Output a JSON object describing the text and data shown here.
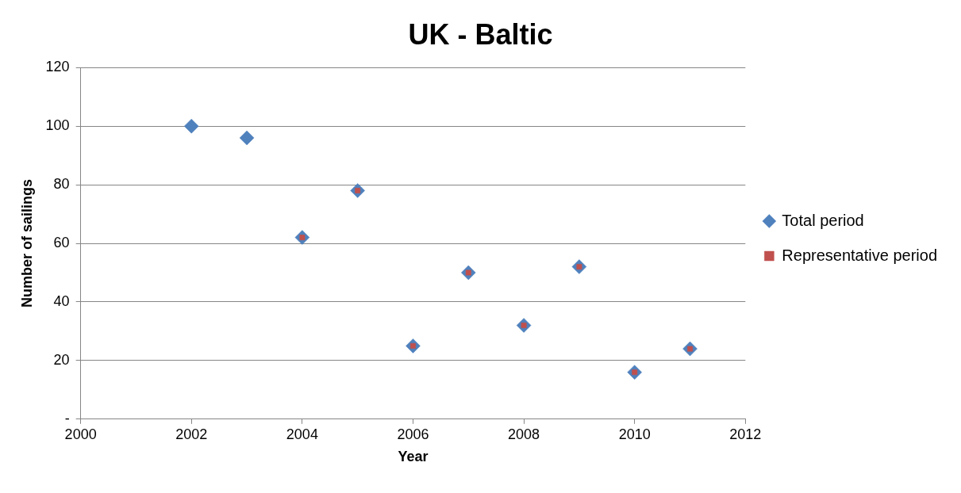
{
  "chart_data": {
    "type": "scatter",
    "title": "UK - Baltic",
    "xlabel": "Year",
    "ylabel": "Number of sailings",
    "xlim": [
      2000,
      2012
    ],
    "xticks": [
      2000,
      2002,
      2004,
      2006,
      2008,
      2010,
      2012
    ],
    "ylim": [
      0,
      120
    ],
    "yticks": [
      {
        "value": 0,
        "label": "-"
      },
      20,
      40,
      60,
      80,
      100,
      120
    ],
    "grid": "y",
    "legend": "right",
    "series": [
      {
        "name": "Total period",
        "color": "#4f81bd",
        "marker": "diamond",
        "x": [
          2002,
          2003,
          2004,
          2005,
          2006,
          2007,
          2008,
          2009,
          2010,
          2011
        ],
        "values": [
          100,
          96,
          62,
          78,
          25,
          50,
          32,
          52,
          16,
          24
        ]
      },
      {
        "name": "Representative period",
        "color": "#c0504d",
        "marker": "square",
        "x": [
          2004,
          2005,
          2006,
          2007,
          2008,
          2009,
          2010,
          2011
        ],
        "values": [
          62,
          78,
          25,
          50,
          32,
          52,
          16,
          24
        ]
      }
    ]
  }
}
